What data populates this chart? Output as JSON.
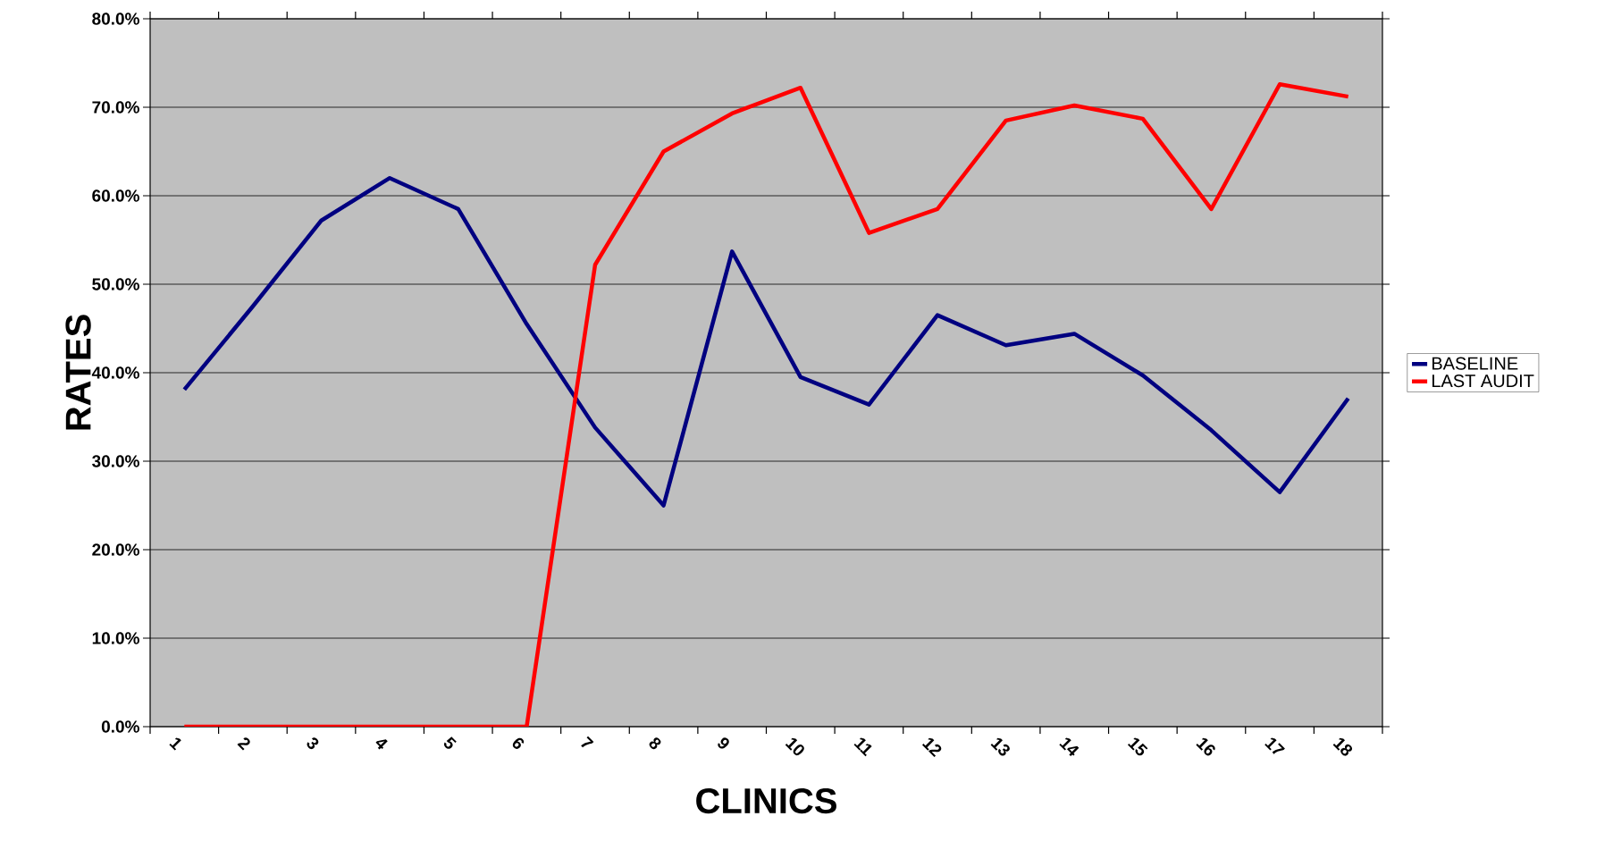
{
  "chart_data": {
    "type": "line",
    "xlabel": "CLINICS",
    "ylabel": "RATES",
    "categories": [
      "1",
      "2",
      "3",
      "4",
      "5",
      "6",
      "7",
      "8",
      "9",
      "10",
      "11",
      "12",
      "13",
      "14",
      "15",
      "16",
      "17",
      "18"
    ],
    "series": [
      {
        "name": "BASELINE",
        "color": "#000080",
        "values": [
          38.1,
          47.5,
          57.2,
          62.0,
          58.5,
          45.5,
          33.8,
          25.0,
          53.7,
          39.5,
          36.4,
          46.5,
          43.1,
          44.4,
          39.7,
          33.5,
          26.5,
          37.1
        ]
      },
      {
        "name": "LAST AUDIT",
        "color": "#ff0000",
        "values": [
          0,
          0,
          0,
          0,
          0,
          0,
          52.2,
          65.0,
          69.3,
          72.2,
          55.8,
          58.5,
          68.5,
          70.2,
          68.7,
          58.5,
          72.6,
          71.2
        ]
      }
    ],
    "ylim": [
      0,
      80
    ],
    "yticks": [
      {
        "value": 0,
        "label": "0.0%"
      },
      {
        "value": 10,
        "label": "10.0%"
      },
      {
        "value": 20,
        "label": "20.0%"
      },
      {
        "value": 30,
        "label": "30.0%"
      },
      {
        "value": 40,
        "label": "40.0%"
      },
      {
        "value": 50,
        "label": "50.0%"
      },
      {
        "value": 60,
        "label": "60.0%"
      },
      {
        "value": 70,
        "label": "70.0%"
      },
      {
        "value": 80,
        "label": "80.0%"
      }
    ],
    "grid": "y",
    "legend": "right",
    "marker": "none",
    "line_style": "solid"
  }
}
